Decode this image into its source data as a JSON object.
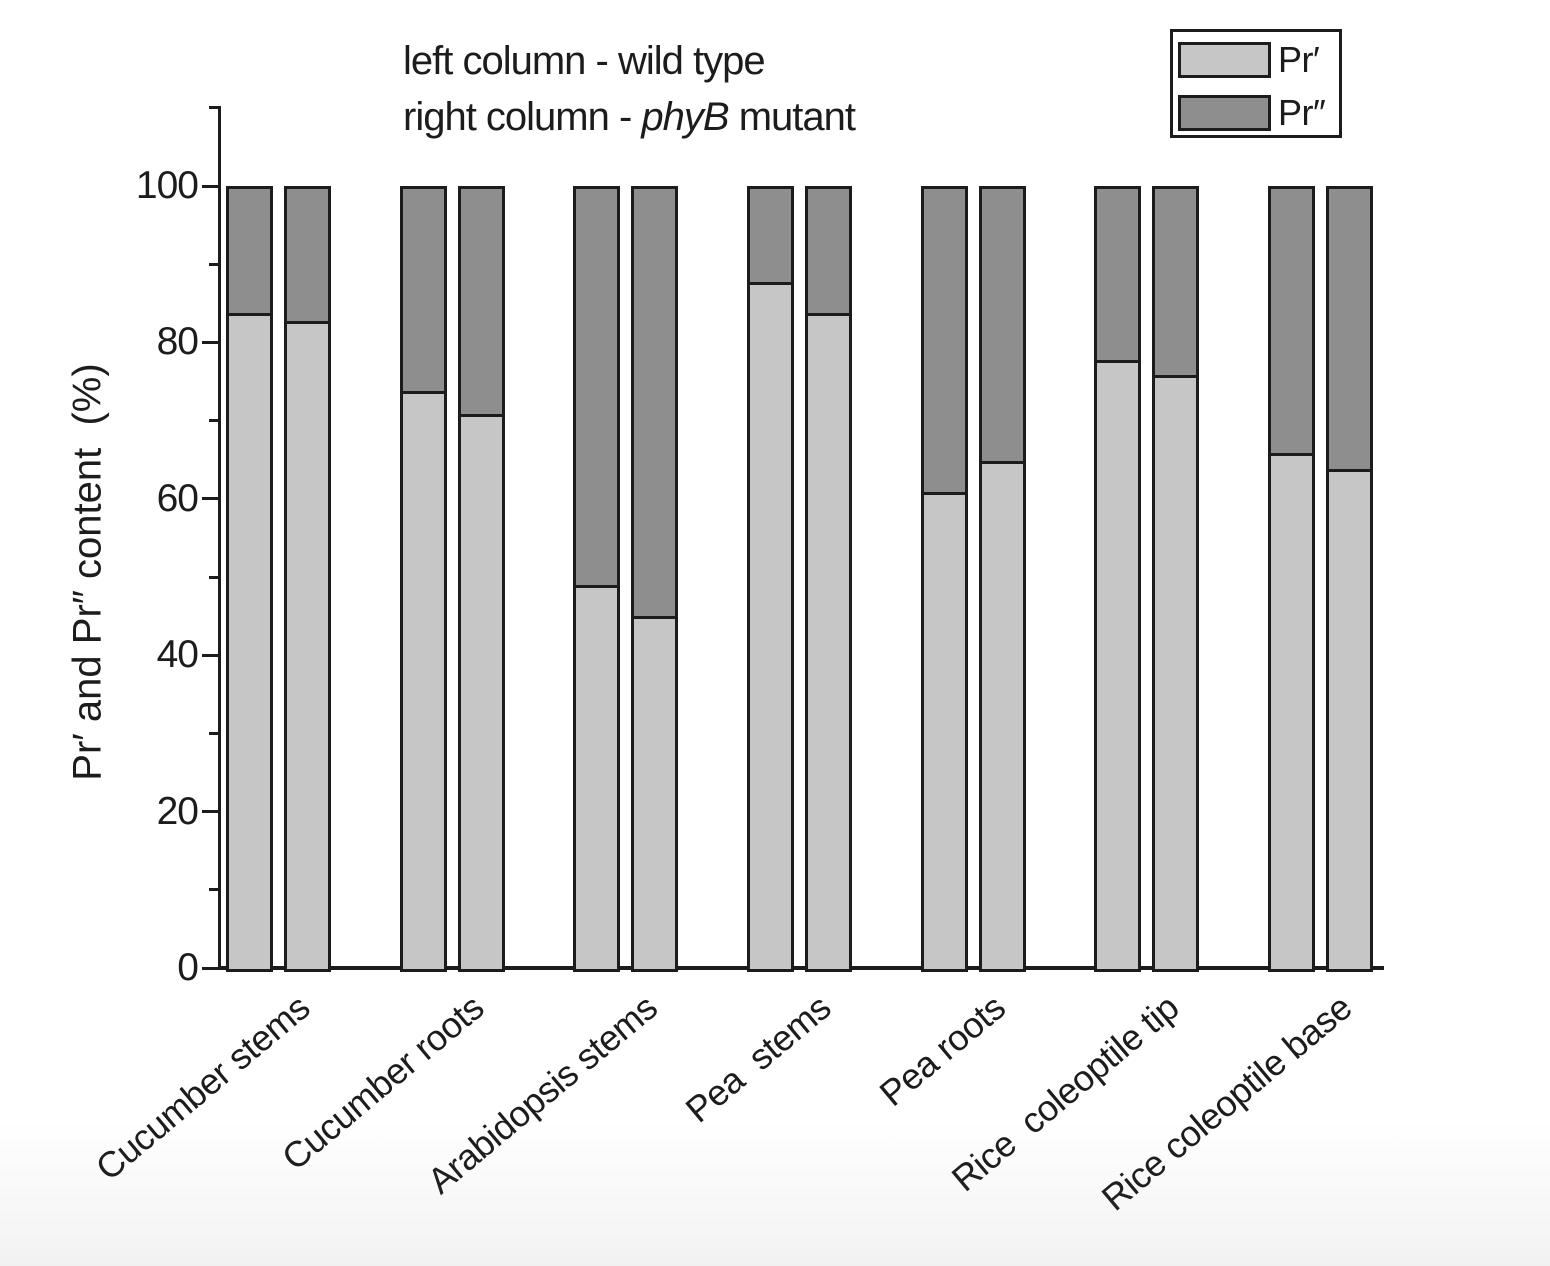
{
  "title": {
    "line1": "left column - wild type",
    "line2_prefix": "right column - ",
    "line2_italic": "phyB",
    "line2_suffix": " mutant"
  },
  "legend": {
    "items": [
      {
        "label": "Pr′",
        "color": "#c6c6c6"
      },
      {
        "label": "Pr″",
        "color": "#8e8e8e"
      }
    ]
  },
  "colors": {
    "pr_prime_fill": "#c6c6c6",
    "pr_double_prime_fill": "#8e8e8e",
    "line": "#1c1c1c",
    "background": "#ffffff"
  },
  "y_axis": {
    "title": "Pr′ and Pr″ content  (%)",
    "major_ticks": [
      0,
      20,
      40,
      60,
      80,
      100
    ],
    "minor_ticks": [
      10,
      30,
      50,
      70,
      90,
      110
    ],
    "range": [
      0,
      110
    ]
  },
  "chart_data": {
    "type": "bar",
    "subtype": "stacked-percent",
    "title": "left column - wild type / right column - phyB mutant",
    "ylabel": "Pr′ and Pr″ content (%)",
    "ylim": [
      0,
      100
    ],
    "stack_total": 100,
    "legend_position": "top-right",
    "grid": false,
    "bar_meaning": {
      "left_bar": "wild type",
      "right_bar": "phyB mutant"
    },
    "categories": [
      "Cucumber stems",
      "Cucumber roots",
      "Arabidopsis stems",
      "Pea  stems",
      "Pea roots",
      "Rice  coleoptile tip",
      "Rice coleoptile base"
    ],
    "series": [
      {
        "name": "Pr′ (wild type)",
        "values": [
          84,
          74,
          49,
          88,
          61,
          78,
          66
        ]
      },
      {
        "name": "Pr″ (wild type)",
        "values": [
          16,
          26,
          51,
          12,
          39,
          22,
          34
        ]
      },
      {
        "name": "Pr′ (phyB mutant)",
        "values": [
          83,
          71,
          45,
          84,
          65,
          76,
          64
        ]
      },
      {
        "name": "Pr″ (phyB mutant)",
        "values": [
          17,
          29,
          55,
          16,
          35,
          24,
          36
        ]
      }
    ],
    "groups": [
      {
        "category": "Cucumber stems",
        "wild_type_pr_prime": 84,
        "phyB_mutant_pr_prime": 83
      },
      {
        "category": "Cucumber roots",
        "wild_type_pr_prime": 74,
        "phyB_mutant_pr_prime": 71
      },
      {
        "category": "Arabidopsis stems",
        "wild_type_pr_prime": 49,
        "phyB_mutant_pr_prime": 45
      },
      {
        "category": "Pea  stems",
        "wild_type_pr_prime": 88,
        "phyB_mutant_pr_prime": 84
      },
      {
        "category": "Pea roots",
        "wild_type_pr_prime": 61,
        "phyB_mutant_pr_prime": 65
      },
      {
        "category": "Rice  coleoptile tip",
        "wild_type_pr_prime": 78,
        "phyB_mutant_pr_prime": 76
      },
      {
        "category": "Rice coleoptile base",
        "wild_type_pr_prime": 66,
        "phyB_mutant_pr_prime": 64
      }
    ]
  }
}
